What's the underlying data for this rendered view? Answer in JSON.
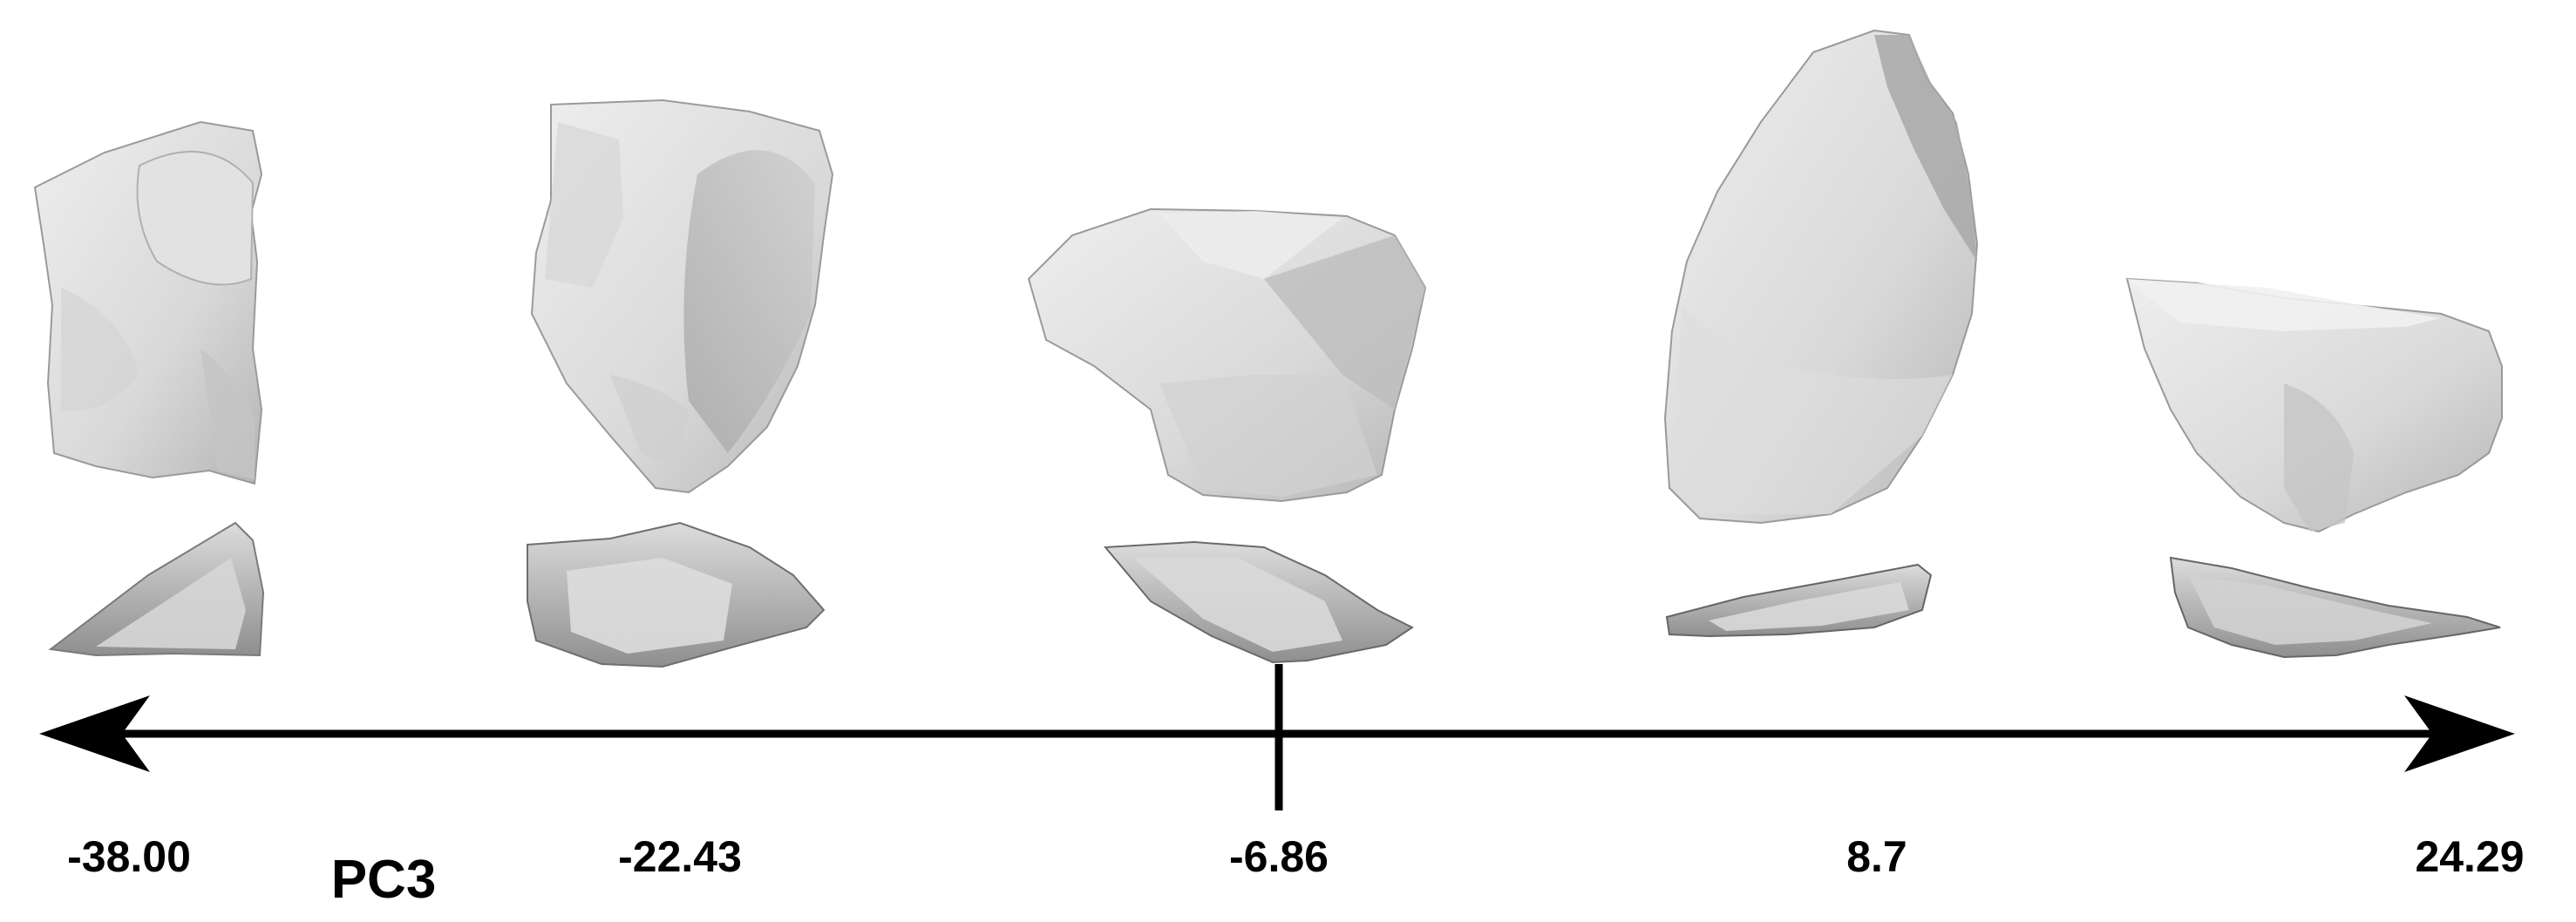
{
  "axis": {
    "name": "PC3",
    "ticks": [
      "-38.00",
      "-22.43",
      "-6.86",
      "8.7",
      "24.29"
    ],
    "center_marker": "-6.86"
  },
  "artifacts": [
    {
      "pc3": "-38.00",
      "views": [
        "plan-view",
        "profile-view"
      ]
    },
    {
      "pc3": "-22.43",
      "views": [
        "plan-view",
        "profile-view"
      ]
    },
    {
      "pc3": "-6.86",
      "views": [
        "plan-view",
        "profile-view"
      ]
    },
    {
      "pc3": "8.7",
      "views": [
        "plan-view",
        "profile-view"
      ]
    },
    {
      "pc3": "24.29",
      "views": [
        "plan-view",
        "profile-view"
      ]
    }
  ],
  "colors": {
    "ink": "#000000",
    "stone_light": "#e6e6e6",
    "stone_mid": "#c9c9c9",
    "stone_dark": "#8e8e8e"
  }
}
